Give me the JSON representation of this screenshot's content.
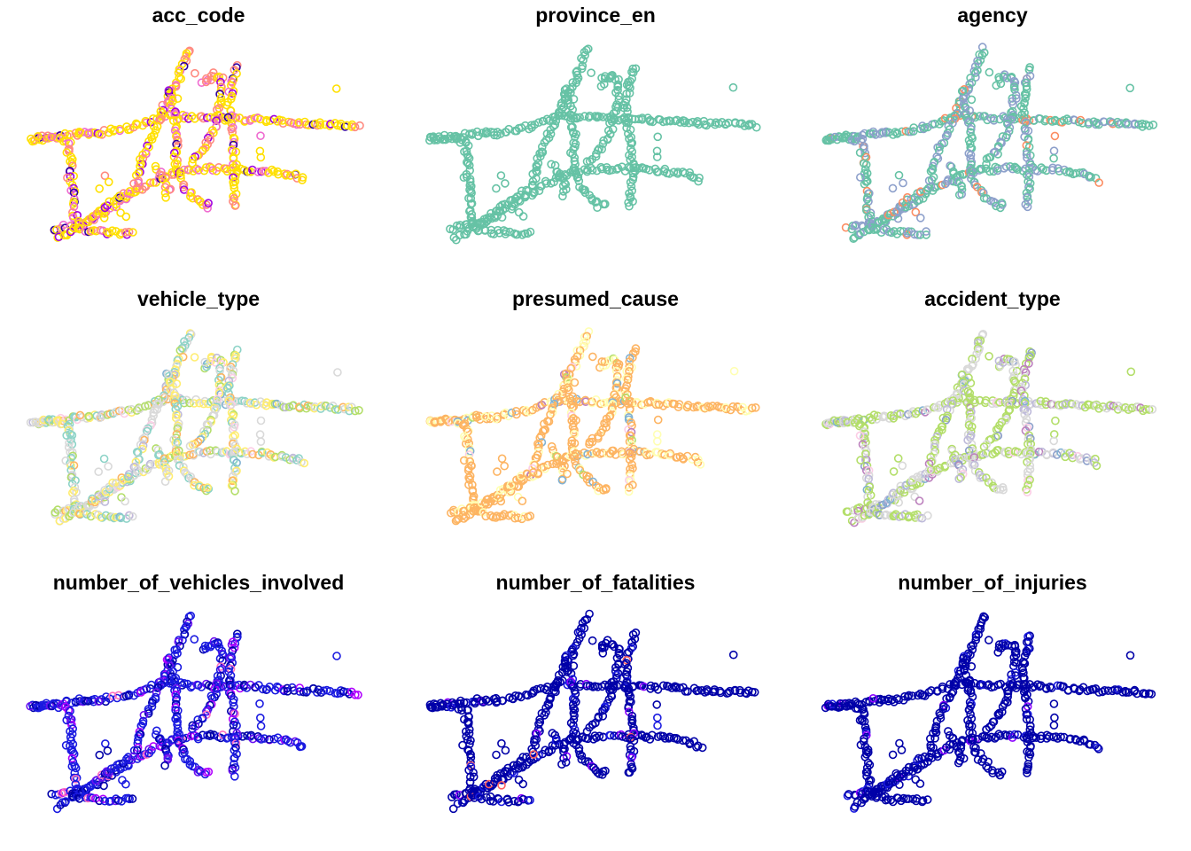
{
  "figure": {
    "panels": [
      {
        "title": "acc_code",
        "palette": [
          "#ffe000",
          "#ff8a80",
          "#ef6bd0",
          "#a000e0",
          "#3000a0"
        ],
        "weights": [
          0.55,
          0.2,
          0.12,
          0.08,
          0.05
        ]
      },
      {
        "title": "province_en",
        "palette": [
          "#66c2a5"
        ],
        "weights": [
          1
        ]
      },
      {
        "title": "agency",
        "palette": [
          "#66c2a5",
          "#8da0cb",
          "#fc8d62"
        ],
        "weights": [
          0.6,
          0.33,
          0.07
        ]
      },
      {
        "title": "vehicle_type",
        "palette": [
          "#d9d9d9",
          "#ffed6f",
          "#8dd3c7",
          "#b3de69",
          "#fdb462",
          "#bebada",
          "#80b1d3",
          "#fccde5"
        ],
        "weights": [
          0.3,
          0.2,
          0.2,
          0.12,
          0.08,
          0.04,
          0.03,
          0.03
        ]
      },
      {
        "title": "presumed_cause",
        "palette": [
          "#fdb462",
          "#ffffb3",
          "#80b1d3",
          "#bc80bd",
          "#fccde5",
          "#b3de69"
        ],
        "weights": [
          0.66,
          0.26,
          0.03,
          0.02,
          0.02,
          0.01
        ]
      },
      {
        "title": "accident_type",
        "palette": [
          "#b3de69",
          "#d9d9d9",
          "#bebada",
          "#8da0cb",
          "#bc80bd",
          "#80b1d3",
          "#fccde5"
        ],
        "weights": [
          0.45,
          0.3,
          0.1,
          0.05,
          0.04,
          0.03,
          0.03
        ]
      },
      {
        "title": "number_of_vehicles_involved",
        "palette": [
          "#1a1ae0",
          "#0000a8",
          "#6a10f0",
          "#b000ff",
          "#ff70c0"
        ],
        "weights": [
          0.55,
          0.25,
          0.1,
          0.07,
          0.03
        ]
      },
      {
        "title": "number_of_fatalities",
        "palette": [
          "#0000a8",
          "#1a1ae0",
          "#8a00ff",
          "#ff6060"
        ],
        "weights": [
          0.9,
          0.06,
          0.025,
          0.015
        ]
      },
      {
        "title": "number_of_injuries",
        "palette": [
          "#0000a8",
          "#1a1ae0",
          "#8a00ff"
        ],
        "weights": [
          0.93,
          0.05,
          0.02
        ]
      }
    ]
  }
}
